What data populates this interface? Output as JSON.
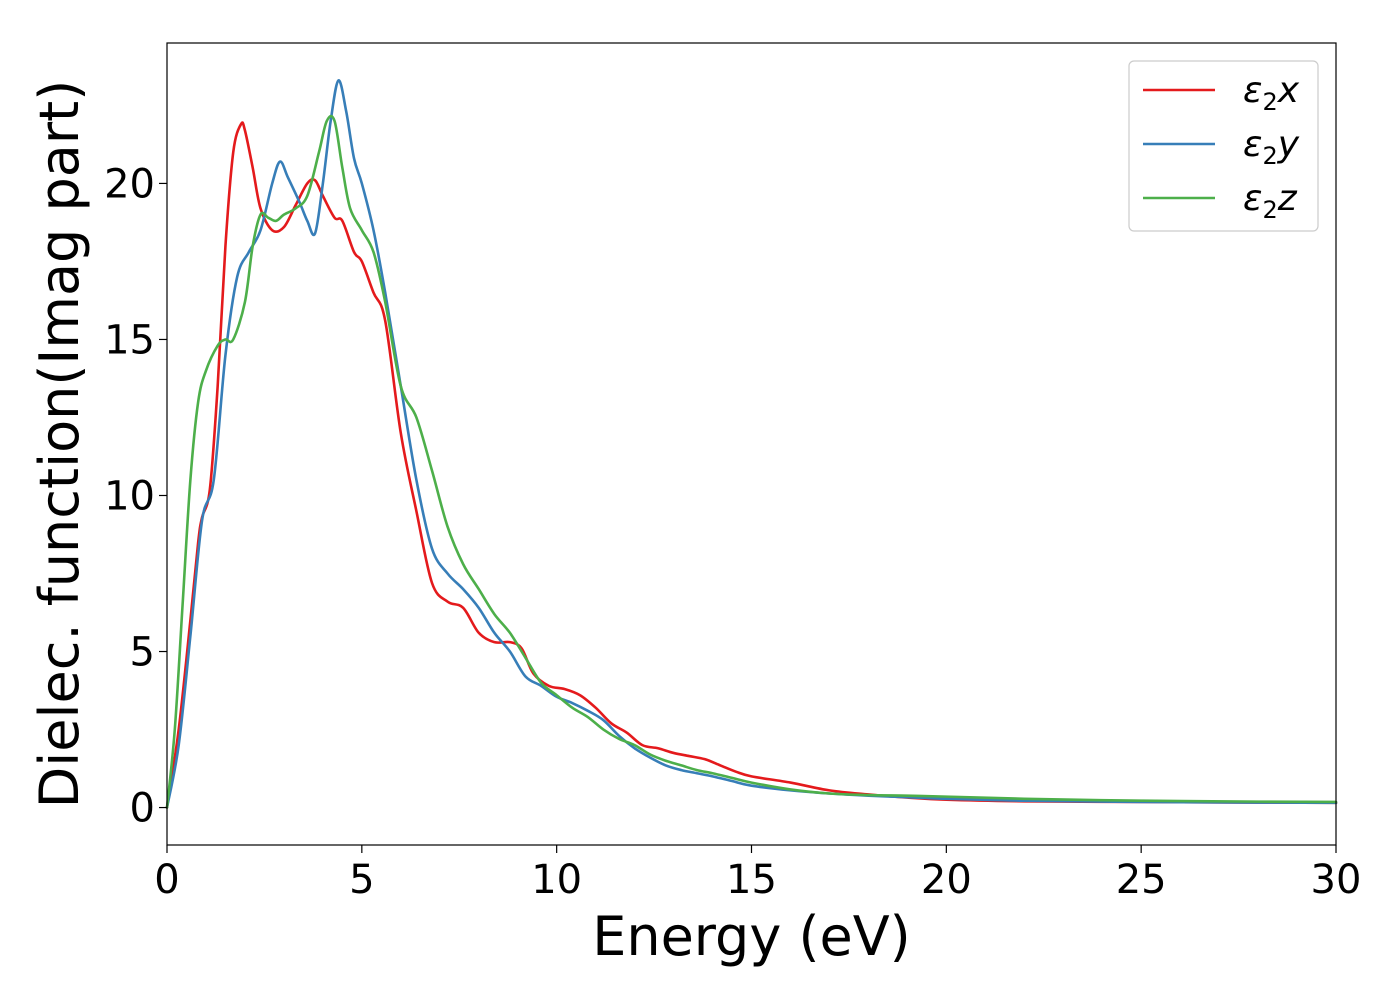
{
  "chart_data": {
    "type": "line",
    "xlabel": "Energy (eV)",
    "ylabel": "Dielec. function(Imag part)",
    "xlim": [
      0,
      30
    ],
    "ylim": [
      -1.2,
      24.5
    ],
    "xticks": [
      0,
      5,
      10,
      15,
      20,
      25,
      30
    ],
    "yticks": [
      0,
      5,
      10,
      15,
      20
    ],
    "grid": false,
    "legend_position": "top-right",
    "series": [
      {
        "name": "ε2x",
        "legend_symbol": "ε",
        "legend_subscript": "2",
        "legend_component": "x",
        "color": "#e41a1c",
        "x": [
          0,
          0.3,
          0.6,
          0.8,
          0.9,
          1.1,
          1.3,
          1.5,
          1.7,
          1.9,
          2.0,
          2.2,
          2.4,
          2.7,
          3.0,
          3.3,
          3.6,
          3.8,
          4.0,
          4.3,
          4.5,
          4.8,
          5.0,
          5.3,
          5.6,
          6.0,
          6.4,
          6.8,
          7.2,
          7.6,
          8.0,
          8.4,
          8.8,
          9.1,
          9.4,
          9.8,
          10.2,
          10.6,
          11.0,
          11.4,
          11.8,
          12.2,
          12.6,
          13.0,
          13.4,
          13.8,
          14.2,
          14.6,
          15.0,
          16.0,
          17.0,
          18.0,
          19.0,
          20.0,
          22.0,
          25.0,
          28.0,
          30.0
        ],
        "y": [
          0,
          2.5,
          6.0,
          8.5,
          9.3,
          10.2,
          13.5,
          18.0,
          21.0,
          21.9,
          21.7,
          20.5,
          19.2,
          18.5,
          18.6,
          19.3,
          20.0,
          20.1,
          19.6,
          18.9,
          18.8,
          17.8,
          17.5,
          16.5,
          15.6,
          12.0,
          9.5,
          7.2,
          6.6,
          6.4,
          5.6,
          5.3,
          5.3,
          5.1,
          4.3,
          3.9,
          3.8,
          3.6,
          3.2,
          2.7,
          2.4,
          2.0,
          1.9,
          1.75,
          1.65,
          1.55,
          1.35,
          1.15,
          1.0,
          0.8,
          0.55,
          0.42,
          0.32,
          0.25,
          0.2,
          0.18,
          0.16,
          0.15
        ]
      },
      {
        "name": "ε2y",
        "legend_symbol": "ε",
        "legend_subscript": "2",
        "legend_component": "y",
        "color": "#377eb8",
        "x": [
          0,
          0.3,
          0.6,
          0.9,
          1.2,
          1.5,
          1.8,
          2.1,
          2.4,
          2.7,
          2.9,
          3.1,
          3.4,
          3.6,
          3.8,
          4.0,
          4.2,
          4.4,
          4.6,
          4.8,
          5.0,
          5.3,
          5.6,
          6.0,
          6.4,
          6.8,
          7.2,
          7.6,
          8.0,
          8.4,
          8.8,
          9.2,
          9.6,
          10.0,
          10.4,
          10.8,
          11.2,
          11.6,
          12.0,
          12.4,
          12.8,
          13.2,
          13.6,
          14.0,
          14.5,
          15.0,
          16.0,
          17.0,
          18.0,
          19.0,
          20.0,
          22.0,
          25.0,
          28.0,
          30.0
        ],
        "y": [
          0,
          2.0,
          5.5,
          9.2,
          10.5,
          14.5,
          17.0,
          17.8,
          18.5,
          20.0,
          20.7,
          20.2,
          19.4,
          18.8,
          18.4,
          20.0,
          22.0,
          23.3,
          22.3,
          20.8,
          20.0,
          18.5,
          16.5,
          13.5,
          10.5,
          8.3,
          7.5,
          7.0,
          6.4,
          5.6,
          5.0,
          4.2,
          3.9,
          3.55,
          3.35,
          3.1,
          2.8,
          2.3,
          1.9,
          1.6,
          1.35,
          1.2,
          1.1,
          1.0,
          0.85,
          0.7,
          0.55,
          0.45,
          0.38,
          0.33,
          0.28,
          0.22,
          0.18,
          0.16,
          0.15
        ]
      },
      {
        "name": "ε2z",
        "legend_symbol": "ε",
        "legend_subscript": "2",
        "legend_component": "z",
        "color": "#4daf4a",
        "x": [
          0,
          0.2,
          0.4,
          0.6,
          0.8,
          1.0,
          1.3,
          1.5,
          1.7,
          2.0,
          2.2,
          2.4,
          2.6,
          2.8,
          3.0,
          3.3,
          3.6,
          3.9,
          4.1,
          4.3,
          4.5,
          4.7,
          5.0,
          5.3,
          5.6,
          6.0,
          6.4,
          6.8,
          7.2,
          7.6,
          8.0,
          8.4,
          8.8,
          9.2,
          9.6,
          10.0,
          10.4,
          10.8,
          11.2,
          11.6,
          12.0,
          12.4,
          12.8,
          13.2,
          13.6,
          14.0,
          14.5,
          15.0,
          16.0,
          17.0,
          18.0,
          19.0,
          20.0,
          22.0,
          25.0,
          28.0,
          30.0
        ],
        "y": [
          0,
          2.5,
          6.5,
          10.5,
          13.0,
          14.0,
          14.8,
          15.0,
          15.0,
          16.2,
          18.0,
          19.0,
          18.9,
          18.8,
          19.0,
          19.2,
          19.6,
          21.0,
          22.0,
          22.0,
          20.5,
          19.2,
          18.5,
          17.8,
          16.2,
          13.5,
          12.5,
          10.8,
          9.0,
          7.8,
          7.0,
          6.2,
          5.6,
          4.8,
          4.0,
          3.6,
          3.2,
          2.9,
          2.5,
          2.2,
          2.0,
          1.7,
          1.5,
          1.35,
          1.2,
          1.1,
          0.95,
          0.8,
          0.58,
          0.45,
          0.4,
          0.38,
          0.35,
          0.28,
          0.22,
          0.19,
          0.18
        ]
      }
    ]
  }
}
